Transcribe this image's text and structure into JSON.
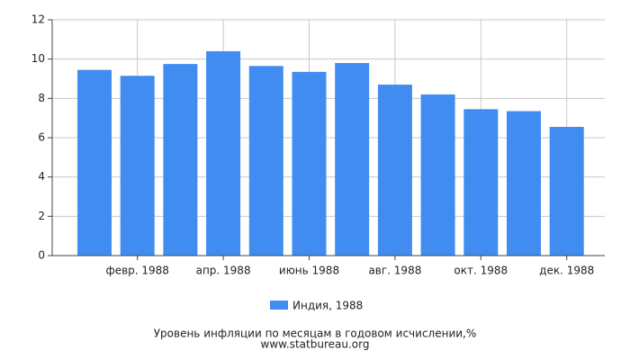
{
  "chart_data": {
    "type": "bar",
    "title": "Уровень инфляции по месяцам в годовом исчислении,%",
    "source": "www.statbureau.org",
    "categories": [
      null,
      "февр. 1988",
      null,
      "апр. 1988",
      null,
      "июнь 1988",
      null,
      "авг. 1988",
      null,
      "окт. 1988",
      null,
      "дек. 1988"
    ],
    "series": [
      {
        "name": "Индия, 1988",
        "color": "#418cf0",
        "values": [
          9.45,
          9.15,
          9.75,
          10.4,
          9.65,
          9.35,
          9.8,
          8.7,
          8.2,
          7.45,
          7.35,
          6.55
        ]
      }
    ],
    "ylim": [
      0,
      12
    ],
    "yticks": [
      0,
      2,
      4,
      6,
      8,
      10,
      12
    ],
    "grid": true
  }
}
